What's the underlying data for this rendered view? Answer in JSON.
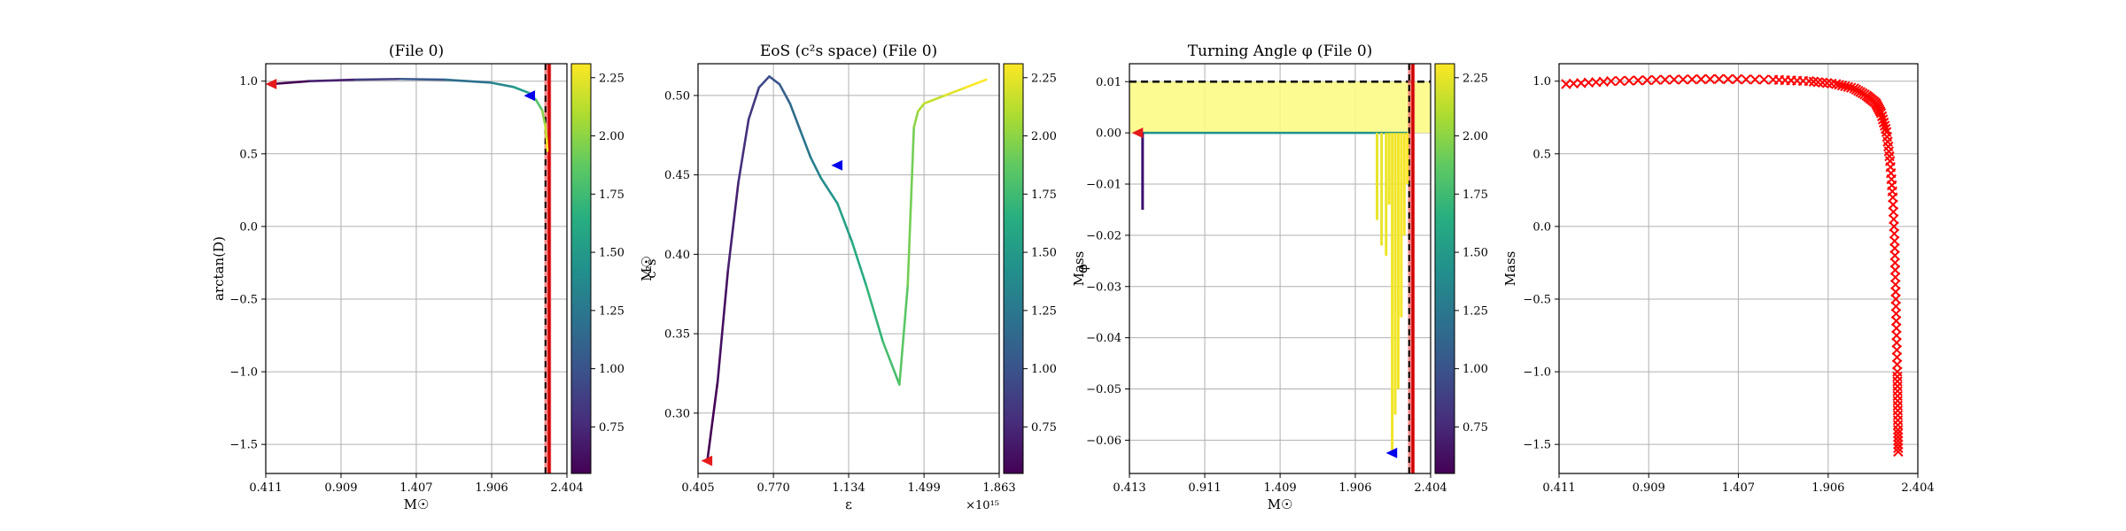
{
  "chart_data": [
    {
      "type": "line",
      "title": "(File 0)",
      "xlabel": "M☉",
      "ylabel": "arctan(D)",
      "xlim": [
        0.411,
        2.404
      ],
      "ylim": [
        -1.7,
        1.12
      ],
      "xticks": [
        "0.411",
        "0.909",
        "1.407",
        "1.906",
        "2.404"
      ],
      "yticks": [
        "−1.5",
        "−1.0",
        "−0.5",
        "0.0",
        "0.5",
        "1.0"
      ],
      "grid": true,
      "x": [
        0.45,
        0.7,
        1.0,
        1.3,
        1.6,
        1.9,
        2.05,
        2.15,
        2.2,
        2.24,
        2.26,
        2.27,
        2.275
      ],
      "y": [
        0.98,
        1.0,
        1.01,
        1.015,
        1.01,
        0.99,
        0.96,
        0.92,
        0.87,
        0.8,
        0.7,
        0.6,
        0.52
      ],
      "color_by": "mass",
      "vlines": {
        "black_dashed": [
          2.262
        ],
        "red": [
          2.283,
          2.29
        ],
        "shade_x": [
          2.255,
          2.3
        ]
      },
      "markers": [
        {
          "color": "#e41a1c",
          "shape": "left-triangle",
          "x": 0.45,
          "y": 0.98
        },
        {
          "color": "#0000ee",
          "shape": "left-triangle",
          "x": 2.16,
          "y": 0.9
        }
      ],
      "colorbar": {
        "label": "M☉",
        "range": [
          0.55,
          2.31
        ],
        "ticks": [
          "0.75",
          "1.00",
          "1.25",
          "1.50",
          "1.75",
          "2.00",
          "2.25"
        ]
      }
    },
    {
      "type": "line",
      "title": "EoS (c²s space) (File 0)",
      "xlabel": "ε",
      "ylabel": "c²s",
      "xlim": [
        0.405,
        1.863
      ],
      "ylim": [
        0.262,
        0.52
      ],
      "xticks": [
        "0.405",
        "0.770",
        "1.134",
        "1.499",
        "1.863"
      ],
      "yticks": [
        "0.30",
        "0.35",
        "0.40",
        "0.45",
        "0.50"
      ],
      "x_offset_label": "×10¹⁵",
      "grid": true,
      "x": [
        0.45,
        0.5,
        0.55,
        0.6,
        0.65,
        0.7,
        0.75,
        0.8,
        0.85,
        0.9,
        0.95,
        1.0,
        1.05,
        1.08,
        1.15,
        1.22,
        1.3,
        1.38,
        1.42,
        1.45,
        1.47,
        1.5,
        1.6,
        1.7,
        1.8
      ],
      "y": [
        0.27,
        0.32,
        0.39,
        0.445,
        0.485,
        0.505,
        0.512,
        0.507,
        0.495,
        0.478,
        0.461,
        0.448,
        0.438,
        0.432,
        0.408,
        0.38,
        0.345,
        0.318,
        0.38,
        0.48,
        0.49,
        0.495,
        0.5,
        0.505,
        0.51
      ],
      "color_by": "mass",
      "markers": [
        {
          "color": "#e41a1c",
          "shape": "left-triangle",
          "x": 0.45,
          "y": 0.27
        },
        {
          "color": "#0000ee",
          "shape": "left-triangle",
          "x": 1.08,
          "y": 0.456
        }
      ],
      "colorbar": {
        "label": "Mass",
        "range": [
          0.55,
          2.31
        ],
        "ticks": [
          "0.75",
          "1.00",
          "1.25",
          "1.50",
          "1.75",
          "2.00",
          "2.25"
        ]
      }
    },
    {
      "type": "line",
      "title": "Turning Angle φ (File 0)",
      "xlabel": "M☉",
      "ylabel": "φ",
      "xlim": [
        0.413,
        2.404
      ],
      "ylim": [
        -0.0665,
        0.0135
      ],
      "xticks": [
        "0.413",
        "0.911",
        "1.409",
        "1.906",
        "2.404"
      ],
      "yticks": [
        "−0.06",
        "−0.05",
        "−0.04",
        "−0.03",
        "−0.02",
        "−0.01",
        "0.00",
        "0.01"
      ],
      "grid": true,
      "hline_dashed": 0.01,
      "shade_y": [
        0.0,
        0.01
      ],
      "spikes": [
        {
          "x": 0.5,
          "y": -0.015
        },
        {
          "x": 2.05,
          "y": -0.017
        },
        {
          "x": 2.08,
          "y": -0.022
        },
        {
          "x": 2.11,
          "y": -0.024
        },
        {
          "x": 2.13,
          "y": -0.014
        },
        {
          "x": 2.15,
          "y": -0.062
        },
        {
          "x": 2.17,
          "y": -0.055
        },
        {
          "x": 2.19,
          "y": -0.05
        },
        {
          "x": 2.21,
          "y": -0.036
        },
        {
          "x": 2.23,
          "y": -0.02
        },
        {
          "x": 2.25,
          "y": -0.01
        }
      ],
      "vlines": {
        "black_dashed": [
          2.262
        ],
        "red": [
          2.283,
          2.29
        ],
        "shade_x": [
          2.255,
          2.3
        ]
      },
      "markers": [
        {
          "color": "#e41a1c",
          "shape": "left-triangle",
          "x": 0.47,
          "y": 0.0
        },
        {
          "color": "#0000ee",
          "shape": "left-triangle",
          "x": 2.15,
          "y": -0.0625
        }
      ],
      "colorbar": {
        "label": "Mass",
        "range": [
          0.55,
          2.31
        ],
        "ticks": [
          "0.75",
          "1.00",
          "1.25",
          "1.50",
          "1.75",
          "2.00",
          "2.25"
        ]
      }
    },
    {
      "type": "scatter",
      "title": "",
      "xlabel": "",
      "ylabel": "",
      "xlim": [
        0.411,
        2.404
      ],
      "ylim": [
        -1.7,
        1.12
      ],
      "xticks": [
        "0.411",
        "0.909",
        "1.407",
        "1.906",
        "2.404"
      ],
      "yticks": [
        "−1.5",
        "−1.0",
        "−0.5",
        "0.0",
        "0.5",
        "1.0"
      ],
      "grid": true,
      "marker": "x",
      "color": "#ff0000",
      "x": [
        0.45,
        0.7,
        1.0,
        1.3,
        1.6,
        1.8,
        1.95,
        2.05,
        2.12,
        2.17,
        2.2,
        2.23,
        2.25,
        2.265,
        2.275,
        2.28,
        2.285,
        2.29,
        2.292,
        2.294,
        2.295
      ],
      "y": [
        0.98,
        1.0,
        1.01,
        1.015,
        1.01,
        1.0,
        0.98,
        0.95,
        0.9,
        0.85,
        0.78,
        0.65,
        0.45,
        0.2,
        -0.1,
        -0.4,
        -0.7,
        -1.0,
        -1.2,
        -1.4,
        -1.55
      ]
    }
  ]
}
